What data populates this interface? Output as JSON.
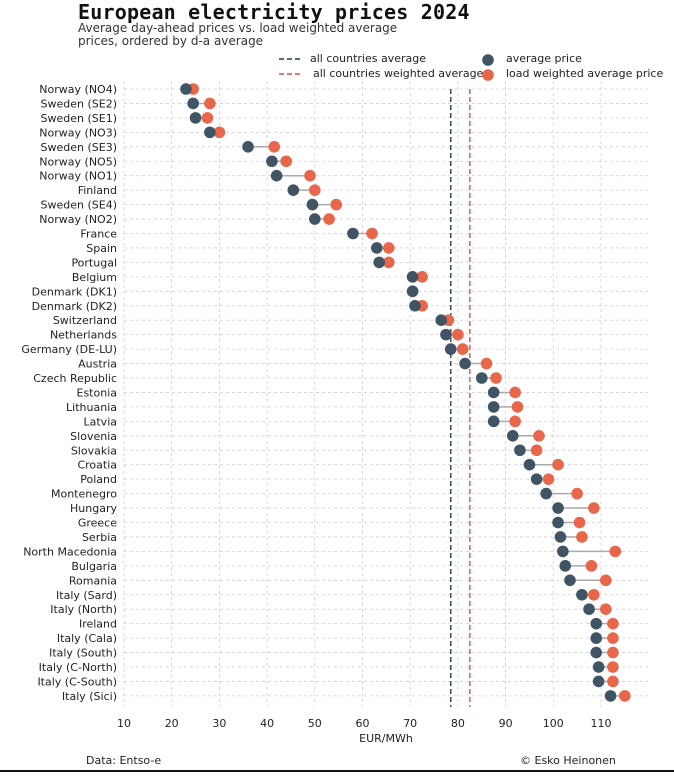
{
  "chart_data": {
    "type": "dot",
    "title": "European electricity prices 2024",
    "subtitle": "Average day-ahead prices vs. load weighted average prices, ordered by d-a average",
    "xlabel": "EUR/MWh",
    "xlim": [
      10,
      120
    ],
    "xticks": [
      10,
      20,
      30,
      40,
      50,
      60,
      70,
      80,
      90,
      100,
      110
    ],
    "legend": {
      "all_avg_label": "all countries average",
      "all_weighted_label": "all countries weighted average",
      "avg_label": "average price",
      "weighted_label": "load weighted average price",
      "position": "top"
    },
    "reference_lines": {
      "all_countries_average": 78.5,
      "all_countries_weighted_average": 82.5
    },
    "colors": {
      "average": "#3f5566",
      "weighted": "#e8664a",
      "connector": "#aaaaaa",
      "grid": "#cfcfcf"
    },
    "categories": [
      "Norway (NO4)",
      "Sweden (SE2)",
      "Sweden (SE1)",
      "Norway (NO3)",
      "Sweden (SE3)",
      "Norway (NO5)",
      "Norway (NO1)",
      "Finland",
      "Sweden (SE4)",
      "Norway (NO2)",
      "France",
      "Spain",
      "Portugal",
      "Belgium",
      "Denmark (DK1)",
      "Denmark (DK2)",
      "Switzerland",
      "Netherlands",
      "Germany (DE-LU)",
      "Austria",
      "Czech Republic",
      "Estonia",
      "Lithuania",
      "Latvia",
      "Slovenia",
      "Slovakia",
      "Croatia",
      "Poland",
      "Montenegro",
      "Hungary",
      "Greece",
      "Serbia",
      "North Macedonia",
      "Bulgaria",
      "Romania",
      "Italy (Sard)",
      "Italy (North)",
      "Ireland",
      "Italy (Cala)",
      "Italy (South)",
      "Italy (C-North)",
      "Italy (C-South)",
      "Italy (Sici)"
    ],
    "series": [
      {
        "name": "average price",
        "values": [
          23,
          24.5,
          25,
          28,
          36,
          41,
          42,
          45.5,
          49.5,
          50,
          58,
          63,
          63.5,
          70.5,
          70.5,
          71,
          76.5,
          77.5,
          78.5,
          81.5,
          85,
          87.5,
          87.5,
          87.5,
          91.5,
          93,
          95,
          96.5,
          98.5,
          101,
          101,
          101.5,
          102,
          102.5,
          103.5,
          106,
          107.5,
          109,
          109,
          109,
          109.5,
          109.5,
          112
        ]
      },
      {
        "name": "load weighted average price",
        "values": [
          24.5,
          28,
          27.5,
          30,
          41.5,
          44,
          49,
          50,
          54.5,
          53,
          62,
          65.5,
          65.5,
          72.5,
          70.5,
          72.5,
          78,
          80,
          81,
          86,
          88,
          92,
          92.5,
          92,
          97,
          96.5,
          101,
          99,
          105,
          108.5,
          105.5,
          106,
          113,
          108,
          111,
          108.5,
          111,
          112.5,
          112.5,
          112.5,
          112.5,
          112.5,
          115
        ]
      }
    ]
  },
  "footer": {
    "source": "Data: Entso-e",
    "credit": "© Esko Heinonen"
  }
}
